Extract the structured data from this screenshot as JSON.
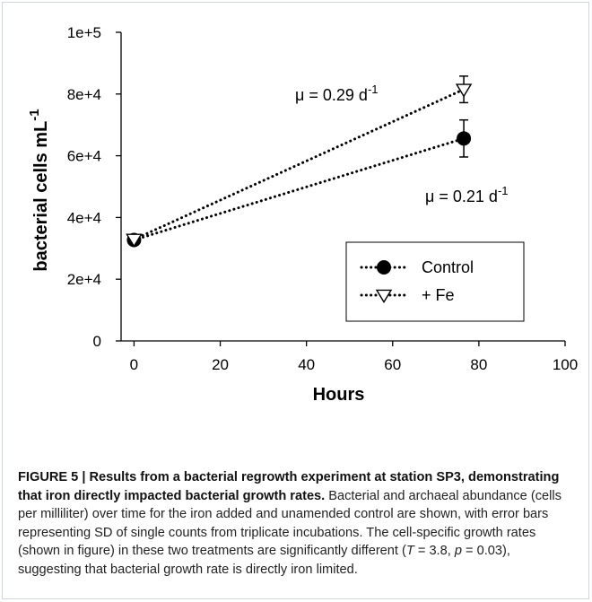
{
  "chart_data": {
    "type": "scatter",
    "x_label": "Hours",
    "y_label_main": "bacterial cells mL",
    "y_label_sup": "-1",
    "xlim": [
      -3,
      100
    ],
    "ylim": [
      0,
      100000
    ],
    "x_ticks": [
      0,
      20,
      40,
      60,
      80,
      100
    ],
    "y_ticks": [
      {
        "value": 0,
        "label": "0"
      },
      {
        "value": 20000,
        "label": "2e+4"
      },
      {
        "value": 40000,
        "label": "4e+4"
      },
      {
        "value": 60000,
        "label": "6e+4"
      },
      {
        "value": 80000,
        "label": "8e+4"
      },
      {
        "value": 100000,
        "label": "1e+5"
      }
    ],
    "series": [
      {
        "name": "Control",
        "marker": "filled-circle",
        "points": [
          {
            "x": 0,
            "y": 32700,
            "err": 0
          },
          {
            "x": 76.5,
            "y": 65600,
            "err": 6000
          }
        ],
        "rate_text": "μ = 0.21 d",
        "rate_sup": "-1"
      },
      {
        "name": "+ Fe",
        "marker": "open-triangle-down",
        "points": [
          {
            "x": 0,
            "y": 32900,
            "err": 0
          },
          {
            "x": 76.5,
            "y": 81500,
            "err": 4300
          }
        ],
        "rate_text": "μ = 0.29 d",
        "rate_sup": "-1"
      }
    ],
    "legend_position": "lower-right",
    "grid": false
  },
  "caption": {
    "title": "FIGURE 5 | Results from a bacterial regrowth experiment at station SP3, demonstrating that iron directly impacted bacterial growth rates.",
    "body_1": " Bacterial and archaeal abundance (cells per milliliter) over time for the iron added and unamended control are shown, with error bars representing SD of single counts from triplicate incubations. The cell-specific growth rates (shown in figure) in these two treatments are significantly different (",
    "t_var": "T",
    "body_2": " = 3.8, ",
    "p_var": "p",
    "body_3": " = 0.03), suggesting that bacterial growth rate is directly iron limited."
  }
}
